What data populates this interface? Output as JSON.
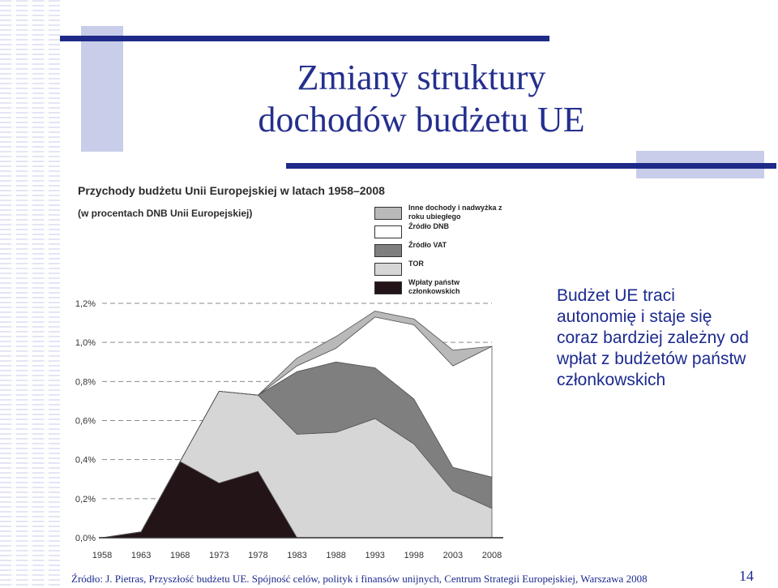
{
  "slide": {
    "title_lines": [
      "Zmiany struktury",
      "dochodów budżetu UE"
    ],
    "note_lines": [
      "Budżet UE traci",
      "autonomię i staje się",
      "coraz bardziej zależny od",
      "wpłat z budżetów państw",
      "członkowskich"
    ],
    "source": "Źródło: J. Pietras, Przyszłość budżetu UE. Spójność celów, polityk i finansów unijnych, Centrum Strategii Europejskiej, Warszawa 2008",
    "page_number": "14",
    "colors": {
      "title": "#242f8e",
      "accent_bar": "#1f2a88",
      "accent_light": "#c8cde9"
    }
  },
  "chart_data": {
    "type": "area",
    "title": "Przychody budżetu Unii Europejskiej  w latach 1958–2008",
    "subtitle": "(w procentach DNB Unii Europejskiej)",
    "x": [
      "1958",
      "1963",
      "1968",
      "1973",
      "1978",
      "1983",
      "1988",
      "1993",
      "1998",
      "2003",
      "2008"
    ],
    "y_ticks": [
      "0,0%",
      "0,2%",
      "0,4%",
      "0,6%",
      "0,8%",
      "1,0%",
      "1,2%"
    ],
    "ylim": [
      0,
      1.2
    ],
    "stacked": true,
    "grid": "horizontal dashed",
    "legend_position": "top-right",
    "series": [
      {
        "name": "Wpłaty państw członkowskich",
        "color": "#231418",
        "values": [
          0.0,
          0.03,
          0.39,
          0.28,
          0.34,
          0.0,
          0.0,
          0.0,
          0.0,
          0.0,
          0.0
        ]
      },
      {
        "name": "TOR",
        "color": "#d6d6d6",
        "values": [
          0.0,
          0.0,
          0.0,
          0.47,
          0.39,
          0.53,
          0.54,
          0.61,
          0.48,
          0.24,
          0.15
        ]
      },
      {
        "name": "Źródło VAT",
        "color": "#7f7f7f",
        "values": [
          0.0,
          0.0,
          0.0,
          0.0,
          0.0,
          0.32,
          0.36,
          0.26,
          0.23,
          0.12,
          0.16
        ]
      },
      {
        "name": "Źródło DNB",
        "color": "#ffffff",
        "values": [
          0.0,
          0.0,
          0.0,
          0.0,
          0.0,
          0.03,
          0.07,
          0.26,
          0.38,
          0.52,
          0.67
        ]
      },
      {
        "name": "Inne dochody i nadwyżka z roku ubiegłego",
        "color": "#b9b9b9",
        "values": [
          0.0,
          0.0,
          0.0,
          0.0,
          0.0,
          0.04,
          0.06,
          0.03,
          0.03,
          0.08,
          0.0
        ]
      }
    ],
    "legend_order": [
      4,
      3,
      2,
      1,
      0
    ]
  }
}
